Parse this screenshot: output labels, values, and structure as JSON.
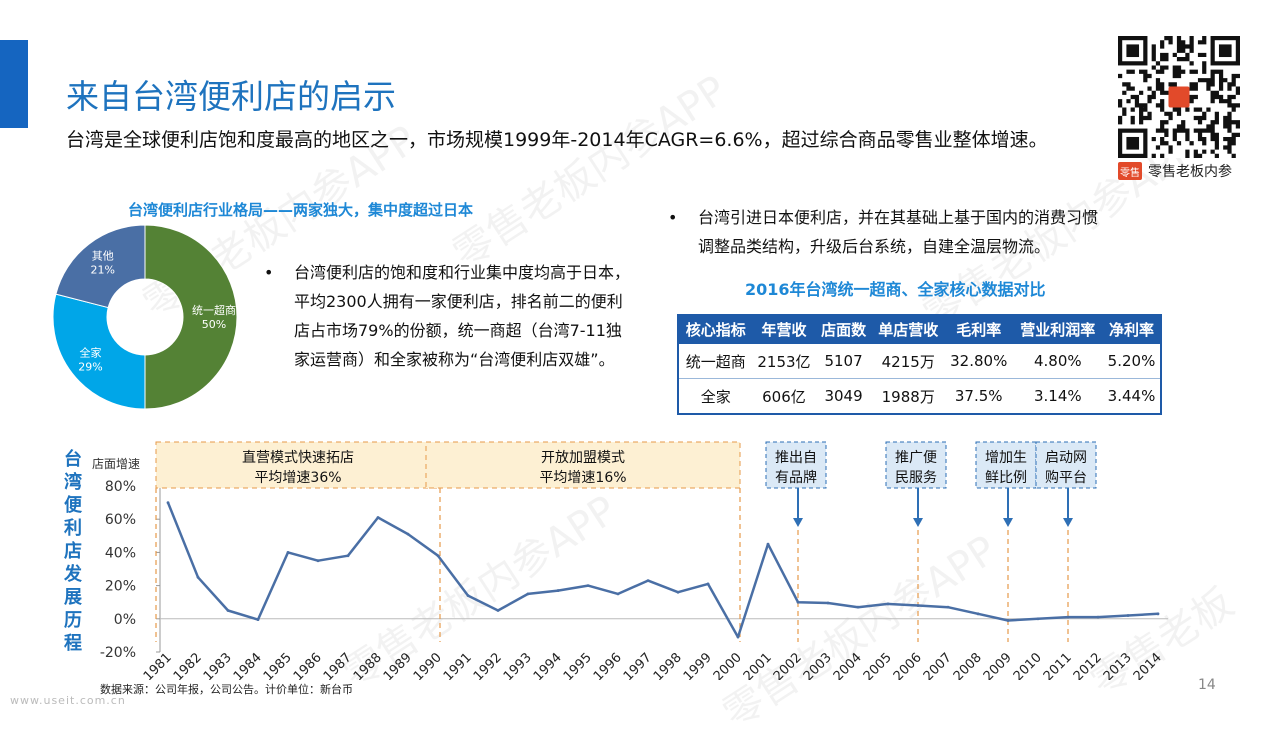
{
  "slide": {
    "title": "来自台湾便利店的启示",
    "subtitle": "台湾是全球便利店饱和度最高的地区之一，市场规模1999年-2014年CAGR=6.6%，超过综合商品零售业整体增速。",
    "page_number": "14",
    "source_note": "数据来源：公司年报，公司公告。计价单位：新台币",
    "footer_url": "www.useit.com.cn",
    "accent_color": "#1565c0"
  },
  "brand": {
    "logo_text": "零售",
    "name": "零售老板内参",
    "qr_icon": "qr-code-icon"
  },
  "watermarks": [
    "零售老板内参APP",
    "零售老板内参APP",
    "零售老板内参APP",
    "零售老板内参APP",
    "零售老板内参APP",
    "零售老板"
  ],
  "donut": {
    "title": "台湾便利店行业格局——两家独大，集中度超过日本",
    "slices": [
      {
        "name": "统一超商",
        "label": "50%",
        "value": 50,
        "color": "#548235"
      },
      {
        "name": "全家",
        "label": "29%",
        "value": 29,
        "color": "#00a6e8"
      },
      {
        "name": "其他",
        "label": "21%",
        "value": 21,
        "color": "#4a6fa5"
      }
    ]
  },
  "bullets": {
    "left": "台湾便利店的饱和度和行业集中度均高于日本，平均2300人拥有一家便利店，排名前二的便利店占市场79%的份额，统一商超（台湾7-11独家运营商）和全家被称为“台湾便利店双雄”。",
    "right": "台湾引进日本便利店，并在其基础上基于国内的消费习惯调整品类结构，升级后台系统，自建全温层物流。",
    "marker": "•"
  },
  "table": {
    "title": "2016年台湾统一超商、全家核心数据对比",
    "headers": [
      "核心指标",
      "年营收",
      "店面数",
      "单店营收",
      "毛利率",
      "营业利润率",
      "净利率"
    ],
    "rows": [
      [
        "统一超商",
        "2153亿",
        "5107",
        "4215万",
        "32.80%",
        "4.80%",
        "5.20%"
      ],
      [
        "全家",
        "606亿",
        "3049",
        "1988万",
        "37.5%",
        "3.14%",
        "3.44%"
      ]
    ]
  },
  "timeline": {
    "vertical_title": [
      "台",
      "湾",
      "便",
      "利",
      "店",
      "发",
      "展",
      "历",
      "程"
    ],
    "phases": [
      {
        "line1": "直营模式快速拓店",
        "line2": "平均增速36%",
        "from": "1981",
        "to": "1990"
      },
      {
        "line1": "开放加盟模式",
        "line2": "平均增速16%",
        "from": "1990",
        "to": "2000"
      }
    ],
    "events": [
      {
        "line1": "推出自",
        "line2": "有品牌",
        "year": "2002"
      },
      {
        "line1": "推广便",
        "line2": "民服务",
        "year": "2006"
      },
      {
        "line1": "增加生",
        "line2": "鲜比例",
        "year": "2009"
      },
      {
        "line1": "启动网",
        "line2": "购平台",
        "year": "2011"
      }
    ]
  },
  "chart_data": {
    "type": "line",
    "title": "",
    "xlabel": "",
    "ylabel": "店面增速",
    "x": [
      "1981",
      "1982",
      "1983",
      "1984",
      "1985",
      "1986",
      "1987",
      "1988",
      "1989",
      "1990",
      "1991",
      "1992",
      "1993",
      "1994",
      "1995",
      "1996",
      "1997",
      "1998",
      "1999",
      "2000",
      "2001",
      "2002",
      "2003",
      "2004",
      "2005",
      "2006",
      "2007",
      "2008",
      "2009",
      "2010",
      "2011",
      "2012",
      "2013",
      "2014"
    ],
    "series": [
      {
        "name": "",
        "values": [
          70,
          25,
          5,
          -0.5,
          40,
          35,
          38,
          61,
          51,
          38,
          14,
          5,
          15,
          17,
          20,
          15,
          23,
          16,
          21,
          -11,
          45,
          10,
          9.5,
          7,
          9,
          8,
          7,
          3,
          -1,
          0,
          1,
          1,
          2,
          3
        ]
      }
    ],
    "yticks": [
      "80%",
      "60%",
      "40%",
      "20%",
      "0%",
      "-20%"
    ],
    "ytick_values": [
      80,
      60,
      40,
      20,
      0,
      -20
    ],
    "ylim": [
      -20,
      80
    ],
    "grid": false,
    "line_color": "#4a6fa5"
  }
}
